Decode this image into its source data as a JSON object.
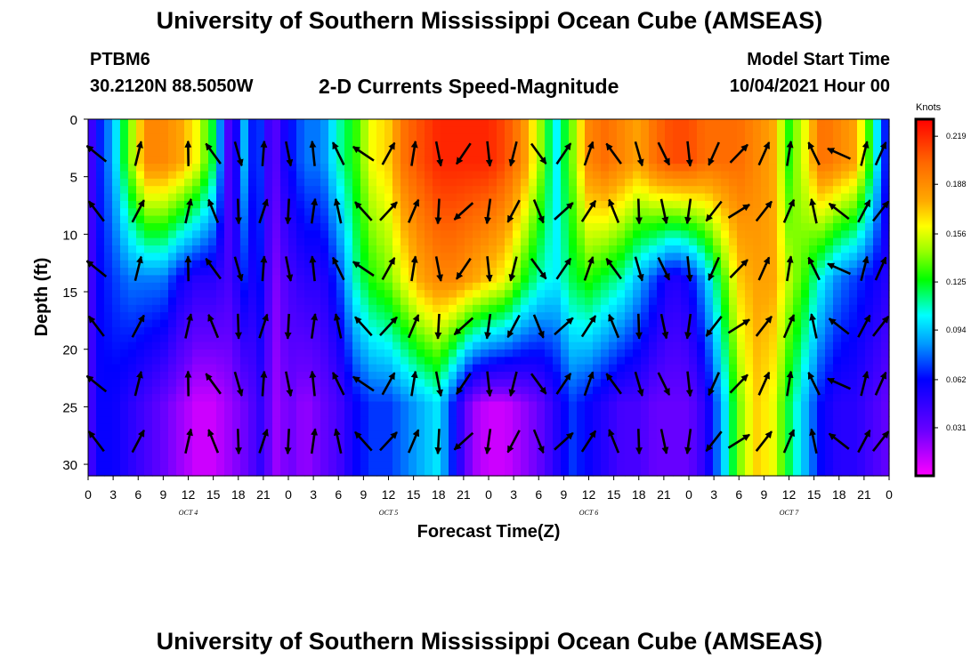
{
  "header": {
    "title": "University of Southern Mississippi Ocean Cube (AMSEAS)",
    "station_id": "PTBM6",
    "station_location": "30.2120N  88.5050W",
    "plot_title": "2-D Currents Speed-Magnitude",
    "model_start_label": "Model Start Time",
    "model_start_time": "10/04/2021 Hour 00"
  },
  "footer": {
    "title": "University of Southern Mississippi Ocean Cube (AMSEAS)"
  },
  "chart_data": {
    "type": "heatmap",
    "title": "2-D Currents Speed-Magnitude",
    "xlabel": "Forecast Time(Z)",
    "ylabel": "Depth (ft)",
    "x_ticks": [
      "0",
      "3",
      "6",
      "9",
      "12",
      "15",
      "18",
      "21",
      "0",
      "3",
      "6",
      "9",
      "12",
      "15",
      "18",
      "21",
      "0",
      "3",
      "6",
      "9",
      "12",
      "15",
      "18",
      "21",
      "0",
      "3",
      "6",
      "9",
      "12",
      "15",
      "18",
      "21",
      "0"
    ],
    "x_range_hours": [
      0,
      96
    ],
    "day_labels": [
      {
        "hour": 12,
        "label": "OCT 4"
      },
      {
        "hour": 36,
        "label": "OCT 5"
      },
      {
        "hour": 60,
        "label": "OCT 6"
      },
      {
        "hour": 84,
        "label": "OCT 7"
      }
    ],
    "y_ticks": [
      0,
      5,
      10,
      15,
      20,
      25,
      30
    ],
    "ylim": [
      31,
      0
    ],
    "colorbar": {
      "label": "Knots",
      "ticks": [
        "0.219",
        "0.188",
        "0.156",
        "0.125",
        "0.094",
        "0.062",
        "0.031"
      ],
      "range": [
        0,
        0.23
      ]
    },
    "speed_profiles": {
      "hours": [
        0,
        1,
        3,
        5,
        7,
        9,
        11,
        13,
        15,
        17,
        19,
        20,
        21,
        22,
        23,
        24,
        26,
        28,
        30,
        32,
        34,
        36,
        38,
        40,
        42,
        44,
        46,
        48,
        50,
        52,
        54,
        56,
        58,
        60,
        62,
        64,
        66,
        68,
        70,
        72,
        74,
        76,
        78,
        80,
        82,
        84,
        86,
        88,
        90,
        92,
        94,
        96
      ],
      "top_knots": [
        0.03,
        0.06,
        0.09,
        0.14,
        0.19,
        0.19,
        0.18,
        0.16,
        0.12,
        0.03,
        0.1,
        0.05,
        0.08,
        0.02,
        0.05,
        0.06,
        0.08,
        0.08,
        0.11,
        0.13,
        0.16,
        0.17,
        0.2,
        0.21,
        0.22,
        0.22,
        0.22,
        0.22,
        0.21,
        0.19,
        0.15,
        0.1,
        0.14,
        0.19,
        0.2,
        0.19,
        0.18,
        0.2,
        0.21,
        0.21,
        0.2,
        0.2,
        0.2,
        0.19,
        0.18,
        0.13,
        0.16,
        0.2,
        0.19,
        0.18,
        0.12,
        0.05
      ],
      "mid_knots": [
        0.03,
        0.06,
        0.07,
        0.08,
        0.08,
        0.08,
        0.06,
        0.05,
        0.05,
        0.04,
        0.07,
        0.05,
        0.07,
        0.02,
        0.03,
        0.04,
        0.05,
        0.05,
        0.07,
        0.11,
        0.13,
        0.14,
        0.16,
        0.18,
        0.19,
        0.19,
        0.18,
        0.17,
        0.16,
        0.13,
        0.11,
        0.1,
        0.12,
        0.13,
        0.12,
        0.11,
        0.09,
        0.07,
        0.05,
        0.06,
        0.09,
        0.13,
        0.17,
        0.18,
        0.18,
        0.15,
        0.13,
        0.1,
        0.08,
        0.07,
        0.06,
        0.05
      ],
      "bottom_knots": [
        0.03,
        0.06,
        0.06,
        0.05,
        0.04,
        0.03,
        0.02,
        0.01,
        0.01,
        0.02,
        0.03,
        0.04,
        0.05,
        0.02,
        0.02,
        0.03,
        0.02,
        0.03,
        0.04,
        0.06,
        0.07,
        0.07,
        0.08,
        0.09,
        0.1,
        0.06,
        0.02,
        0.01,
        0.01,
        0.02,
        0.03,
        0.05,
        0.07,
        0.06,
        0.05,
        0.04,
        0.04,
        0.03,
        0.03,
        0.03,
        0.05,
        0.09,
        0.14,
        0.17,
        0.16,
        0.12,
        0.09,
        0.06,
        0.05,
        0.05,
        0.04,
        0.03
      ]
    },
    "vector_columns": [
      {
        "hour": 1,
        "angle_deg": -45
      },
      {
        "hour": 6,
        "angle_deg": 20
      },
      {
        "hour": 12,
        "angle_deg": 5
      },
      {
        "hour": 15,
        "angle_deg": -30
      },
      {
        "hour": 18,
        "angle_deg": 170
      },
      {
        "hour": 21,
        "angle_deg": 10
      },
      {
        "hour": 24,
        "angle_deg": 175
      },
      {
        "hour": 27,
        "angle_deg": 0
      },
      {
        "hour": 30,
        "angle_deg": -20
      },
      {
        "hour": 33,
        "angle_deg": -50
      },
      {
        "hour": 36,
        "angle_deg": 35
      },
      {
        "hour": 39,
        "angle_deg": 15
      },
      {
        "hour": 42,
        "angle_deg": 175
      },
      {
        "hour": 45,
        "angle_deg": -140
      },
      {
        "hour": 48,
        "angle_deg": 180
      },
      {
        "hour": 51,
        "angle_deg": -160
      },
      {
        "hour": 54,
        "angle_deg": 150
      },
      {
        "hour": 57,
        "angle_deg": 40
      },
      {
        "hour": 60,
        "angle_deg": 25
      },
      {
        "hour": 63,
        "angle_deg": -30
      },
      {
        "hour": 66,
        "angle_deg": 170
      },
      {
        "hour": 69,
        "angle_deg": 160
      },
      {
        "hour": 72,
        "angle_deg": 180
      },
      {
        "hour": 75,
        "angle_deg": -150
      },
      {
        "hour": 78,
        "angle_deg": 50
      },
      {
        "hour": 81,
        "angle_deg": 30
      },
      {
        "hour": 84,
        "angle_deg": 15
      },
      {
        "hour": 87,
        "angle_deg": -20
      },
      {
        "hour": 90,
        "angle_deg": -60
      },
      {
        "hour": 93,
        "angle_deg": 20
      },
      {
        "hour": 95,
        "angle_deg": 30
      }
    ],
    "vector_depths": [
      3,
      8,
      13,
      18,
      23,
      28
    ]
  }
}
